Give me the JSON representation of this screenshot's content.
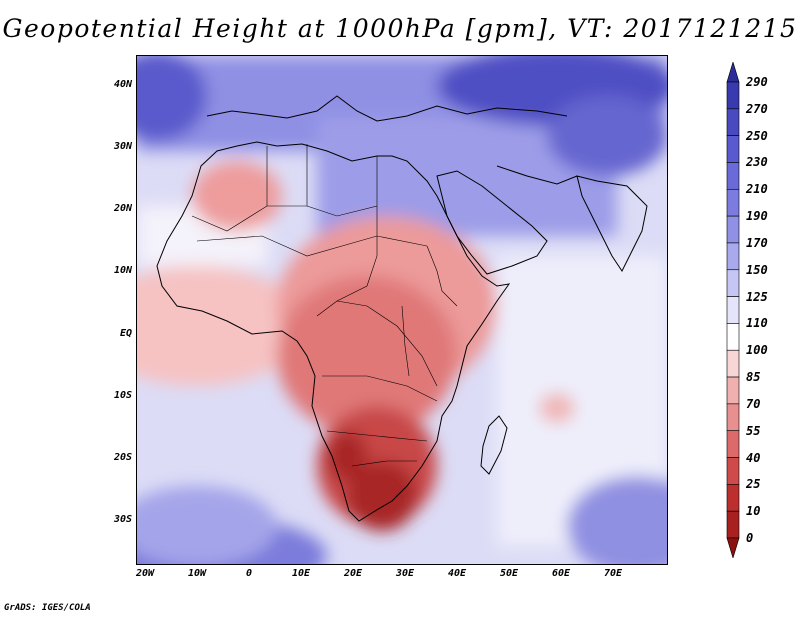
{
  "title": "Geopotential Height at 1000hPa [gpm], VT: 2017121215",
  "credit": "GrADS: IGES/COLA",
  "lat_ticks": [
    "40N",
    "30N",
    "20N",
    "10N",
    "EQ",
    "10S",
    "20S",
    "30S"
  ],
  "lon_ticks": [
    "20W",
    "10W",
    "0",
    "10E",
    "20E",
    "30E",
    "40E",
    "50E",
    "60E",
    "70E"
  ],
  "colorbar": {
    "labels": [
      "290",
      "270",
      "250",
      "230",
      "210",
      "190",
      "170",
      "150",
      "125",
      "110",
      "100",
      "85",
      "70",
      "55",
      "40",
      "25",
      "10",
      "0"
    ],
    "colors": [
      "#2c2c9a",
      "#3a3ab0",
      "#4a4ac0",
      "#5a5ad0",
      "#6a6ad8",
      "#7c7ce0",
      "#9090e6",
      "#a9a9ee",
      "#c6c6f4",
      "#e4e4fa",
      "#ffffff",
      "#f8d6d6",
      "#f0b0b0",
      "#e89090",
      "#dd6a6a",
      "#cf4a4a",
      "#bd2f2f",
      "#a82020",
      "#8b1010"
    ]
  }
}
